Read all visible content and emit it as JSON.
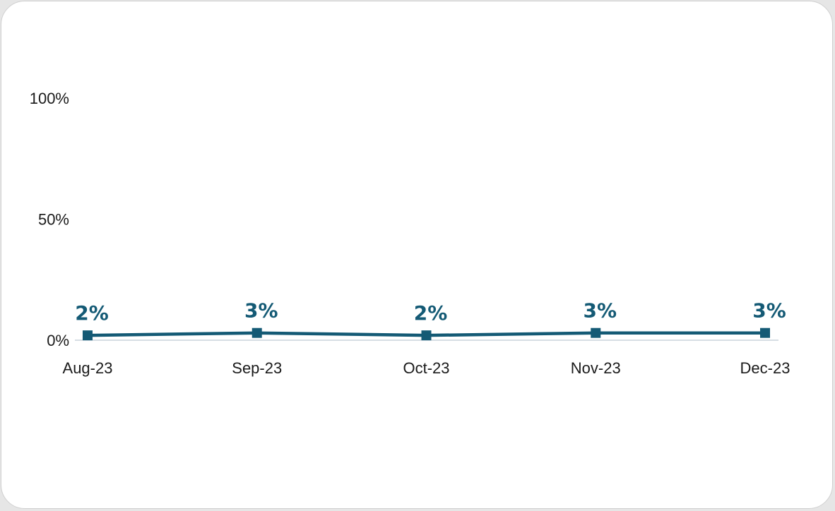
{
  "chart_data": {
    "type": "line",
    "categories": [
      "Aug-23",
      "Sep-23",
      "Oct-23",
      "Nov-23",
      "Dec-23"
    ],
    "series": [
      {
        "values": [
          2,
          3,
          2,
          3,
          3
        ],
        "data_labels": [
          "2%",
          "3%",
          "2%",
          "3%",
          "3%"
        ],
        "color": "#145a75",
        "marker": "square"
      }
    ],
    "yticks": [
      {
        "value": 0,
        "label": "0%"
      },
      {
        "value": 50,
        "label": "50%"
      },
      {
        "value": 100,
        "label": "100%"
      }
    ],
    "ylim": [
      0,
      100
    ],
    "grid": false,
    "baseline_color": "#c9d3dc"
  }
}
